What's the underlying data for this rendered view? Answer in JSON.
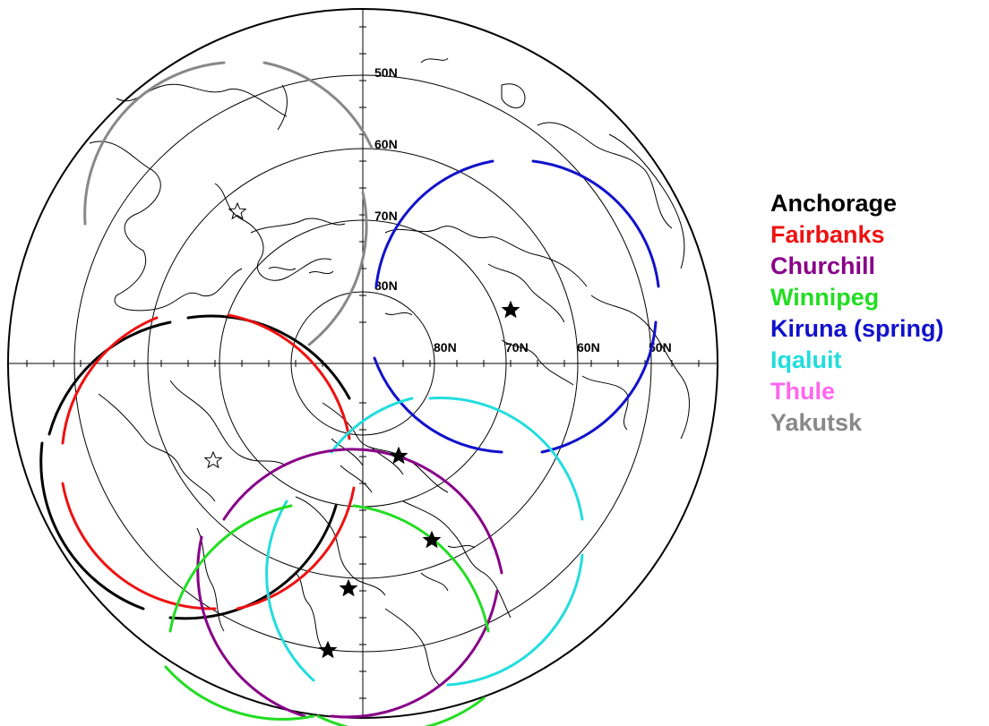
{
  "map": {
    "projection": "polar stereographic (north)",
    "latitude_circle_labels": [
      "50N",
      "60N",
      "70N",
      "80N"
    ],
    "meridian_labels": [
      "80N",
      "70N",
      "60N",
      "50N"
    ],
    "star_marker_icon": "star-icon"
  },
  "legend": {
    "entries": [
      {
        "label": "Anchorage",
        "color": "#000000"
      },
      {
        "label": "Fairbanks",
        "color": "#ee1111"
      },
      {
        "label": "Churchill",
        "color": "#880088"
      },
      {
        "label": "Winnipeg",
        "color": "#22dd22"
      },
      {
        "label": "Kiruna (spring)",
        "color": "#1111cc"
      },
      {
        "label": "Iqaluit",
        "color": "#22dddd"
      },
      {
        "label": "Thule",
        "color": "#ff66ee"
      },
      {
        "label": "Yakutsk",
        "color": "#888888"
      }
    ]
  }
}
